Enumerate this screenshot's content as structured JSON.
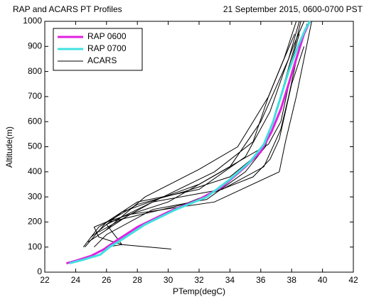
{
  "chart_data": {
    "type": "line",
    "title": "RAP and ACARS PT Profiles",
    "subtitle": "21 September 2015, 0600-0700 PST",
    "x_label": "PTemp(degC)",
    "y_label": "Altitude(m)",
    "xlim": [
      22,
      42
    ],
    "xticks": [
      22,
      24,
      26,
      28,
      30,
      32,
      34,
      36,
      38,
      40,
      42
    ],
    "ylim": [
      0,
      1000
    ],
    "yticks": [
      0,
      100,
      200,
      300,
      400,
      500,
      600,
      700,
      800,
      900,
      1000
    ],
    "grid": false,
    "legend": "upper-left",
    "series": [
      {
        "name": "RAP 0600",
        "color": "#e020e0",
        "x": [
          23.4,
          24,
          25,
          25.8,
          26.5,
          28,
          30,
          32,
          33.5,
          35,
          36,
          36.7,
          37.3,
          37.8,
          38.3,
          38.8,
          39.1
        ],
        "y": [
          35,
          45,
          65,
          90,
          120,
          180,
          240,
          290,
          340,
          420,
          480,
          560,
          650,
          750,
          850,
          950,
          990
        ]
      },
      {
        "name": "RAP 0700",
        "color": "#40e0e0",
        "x": [
          23.6,
          24.5,
          25.6,
          26.2,
          27,
          28.5,
          30.5,
          32.5,
          34,
          35.3,
          36.2,
          36.8,
          37.3,
          37.8,
          38.4,
          38.9,
          39.2
        ],
        "y": [
          35,
          50,
          70,
          100,
          130,
          190,
          250,
          300,
          370,
          440,
          510,
          600,
          700,
          800,
          900,
          970,
          1000
        ]
      },
      {
        "name": "ACARS",
        "color": "#000000",
        "segments": [
          {
            "x": [
              24.5,
              25.5,
              28,
              31,
              34,
              36,
              36.8,
              37.5,
              38.2,
              38.6
            ],
            "y": [
              100,
              180,
              270,
              320,
              380,
              480,
              600,
              750,
              900,
              1000
            ]
          },
          {
            "x": [
              25.2,
              26,
              29,
              32.5,
              35,
              36.3,
              37,
              37.8,
              38.5
            ],
            "y": [
              100,
              150,
              250,
              290,
              400,
              500,
              650,
              800,
              950
            ]
          },
          {
            "x": [
              26,
              27,
              26,
              29,
              33,
              35.5,
              36.5,
              37.5,
              38.3
            ],
            "y": [
              100,
              110,
              190,
              280,
              400,
              520,
              700,
              850,
              1000
            ]
          },
          {
            "x": [
              30.2,
              27,
              25.5,
              25.2,
              26,
              30,
              34,
              36,
              37.8,
              38.5
            ],
            "y": [
              92,
              110,
              140,
              180,
              200,
              280,
              420,
              600,
              850,
              1000
            ]
          },
          {
            "x": [
              24.6,
              26,
              28,
              32,
              35,
              36.6,
              37.5,
              38.1,
              38.8
            ],
            "y": [
              100,
              200,
              280,
              330,
              460,
              640,
              800,
              900,
              1000
            ]
          },
          {
            "x": [
              25,
              27,
              32,
              36.5,
              37.3,
              38,
              39
            ],
            "y": [
              140,
              240,
              350,
              510,
              600,
              800,
              990
            ]
          },
          {
            "x": [
              26,
              28.5,
              32,
              34.5,
              35.5,
              36.5,
              37.3,
              38.2
            ],
            "y": [
              170,
              300,
              410,
              500,
              600,
              700,
              820,
              950
            ]
          },
          {
            "x": [
              25.5,
              29,
              33.5,
              36.2,
              37.3,
              37.8,
              38.5,
              39.2
            ],
            "y": [
              160,
              280,
              330,
              420,
              570,
              700,
              900,
              1000
            ]
          },
          {
            "x": [
              26.2,
              31,
              35.5,
              36.6,
              37.2,
              38,
              38.8
            ],
            "y": [
              200,
              270,
              380,
              450,
              530,
              750,
              900
            ]
          },
          {
            "x": [
              24.8,
              27.5,
              33,
              37.2,
              37.6,
              38.3,
              39.3
            ],
            "y": [
              120,
              230,
              280,
              400,
              520,
              700,
              1000
            ]
          }
        ]
      }
    ]
  }
}
